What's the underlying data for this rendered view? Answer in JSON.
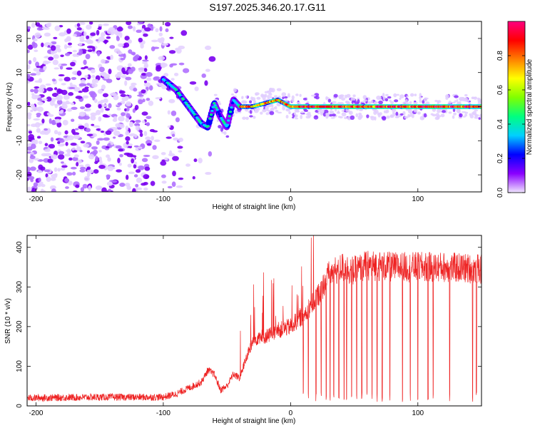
{
  "title": "S197.2025.346.20.17.G11",
  "chart_data": [
    {
      "type": "heatmap",
      "xlabel": "Height of straight line (km)",
      "ylabel": "Frequency (Hz)",
      "xlim": [
        -207,
        150
      ],
      "ylim": [
        -25,
        25
      ],
      "xticks": [
        "-200",
        "-100",
        "0",
        "100"
      ],
      "yticks": [
        "-20",
        "-10",
        "0",
        "10",
        "20"
      ],
      "colorbar": {
        "label": "Normalized spectral amplitude",
        "range": [
          0,
          1
        ],
        "ticks": [
          "0.0",
          "0.2",
          "0.4",
          "0.6",
          "0.8"
        ],
        "colors": [
          "#f0e6ff",
          "#8a00ff",
          "#0000ff",
          "#00d0ff",
          "#00ff80",
          "#80ff00",
          "#ffff00",
          "#ff8000",
          "#ff0000",
          "#ff0080"
        ]
      },
      "ridge": {
        "x": [
          -100,
          -90,
          -80,
          -70,
          -65,
          -60,
          -55,
          -50,
          -45,
          -40,
          -30,
          -20,
          -10,
          -5,
          0,
          20,
          60,
          100,
          150
        ],
        "freq": [
          8,
          5,
          0,
          -5,
          -6,
          1,
          -3,
          -6,
          2,
          0,
          0,
          1,
          2,
          1,
          0,
          0,
          0,
          0,
          0
        ]
      }
    },
    {
      "type": "line",
      "xlabel": "Height of straight line (km)",
      "ylabel": "SNR (10 * v/v)",
      "xlim": [
        -207,
        150
      ],
      "ylim": [
        0,
        430
      ],
      "xticks": [
        "-200",
        "-100",
        "0",
        "100"
      ],
      "yticks": [
        "0",
        "100",
        "200",
        "300",
        "400"
      ],
      "color": "#ee2222",
      "envelope": {
        "x": [
          -207,
          -150,
          -100,
          -90,
          -80,
          -70,
          -65,
          -60,
          -55,
          -50,
          -45,
          -40,
          -35,
          -30,
          -25,
          -20,
          -10,
          0,
          10,
          20,
          30,
          40,
          50,
          60,
          80,
          100,
          120,
          150
        ],
        "snr": [
          20,
          22,
          22,
          30,
          45,
          60,
          90,
          80,
          40,
          50,
          80,
          70,
          120,
          160,
          175,
          175,
          190,
          200,
          230,
          270,
          330,
          350,
          340,
          355,
          350,
          350,
          350,
          345
        ]
      },
      "dropouts_x": [
        10,
        14,
        20,
        24,
        28,
        31,
        34,
        38,
        42,
        44,
        48,
        52,
        56,
        60,
        64,
        68,
        72,
        78,
        88,
        94,
        100,
        108,
        112,
        125,
        143,
        146
      ]
    }
  ]
}
